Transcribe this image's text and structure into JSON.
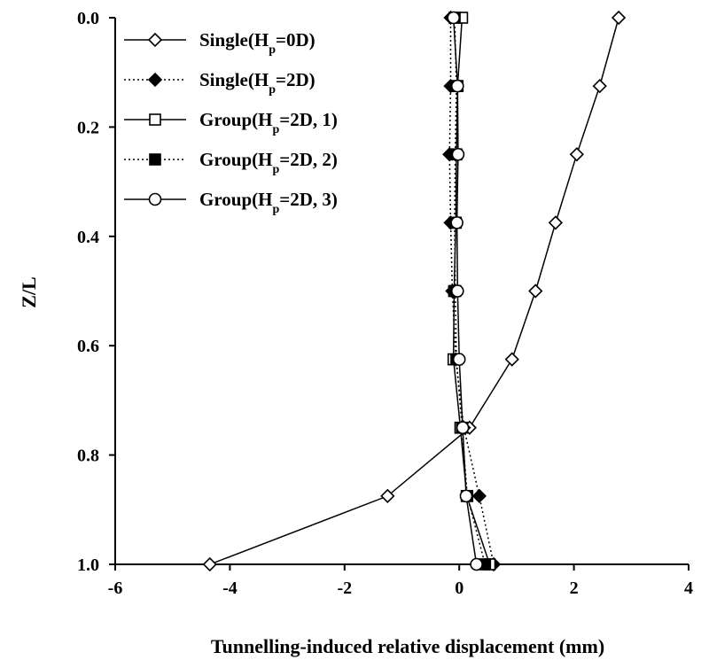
{
  "chart_data": {
    "type": "line",
    "title": "",
    "xlabel": "Tunnelling-induced relative displacement (mm)",
    "ylabel": "Z/L",
    "xlim": [
      -6,
      4
    ],
    "ylim": [
      0,
      1
    ],
    "y_inverted": true,
    "x_ticks": [
      "-6",
      "-4",
      "-2",
      "0",
      "2",
      "4"
    ],
    "y_ticks": [
      "0.0",
      "0.2",
      "0.4",
      "0.6",
      "0.8",
      "1.0"
    ],
    "grid": false,
    "legend_position": "top-left",
    "series": [
      {
        "name_main": "Single(H",
        "name_sub": "p",
        "name_tail": "=0D)",
        "marker": "diamond",
        "fill": "open",
        "line": "solid",
        "points": [
          [
            2.78,
            0.0
          ],
          [
            2.45,
            0.125
          ],
          [
            2.05,
            0.25
          ],
          [
            1.68,
            0.375
          ],
          [
            1.33,
            0.5
          ],
          [
            0.92,
            0.625
          ],
          [
            0.18,
            0.75
          ],
          [
            -1.25,
            0.875
          ],
          [
            -4.35,
            1.0
          ]
        ]
      },
      {
        "name_main": "Single(H",
        "name_sub": "p",
        "name_tail": "=2D)",
        "marker": "diamond",
        "fill": "filled",
        "line": "dotted",
        "points": [
          [
            -0.15,
            0.0
          ],
          [
            -0.15,
            0.125
          ],
          [
            -0.17,
            0.25
          ],
          [
            -0.15,
            0.375
          ],
          [
            -0.12,
            0.5
          ],
          [
            -0.06,
            0.625
          ],
          [
            0.08,
            0.75
          ],
          [
            0.35,
            0.875
          ],
          [
            0.6,
            1.0
          ]
        ]
      },
      {
        "name_main": "Group(H",
        "name_sub": "p",
        "name_tail": "=2D, 1)",
        "marker": "square",
        "fill": "open",
        "line": "solid",
        "points": [
          [
            0.05,
            0.0
          ],
          [
            -0.03,
            0.125
          ],
          [
            -0.05,
            0.25
          ],
          [
            -0.06,
            0.375
          ],
          [
            -0.09,
            0.5
          ],
          [
            -0.1,
            0.625
          ],
          [
            0.02,
            0.75
          ],
          [
            0.13,
            0.875
          ],
          [
            0.53,
            1.0
          ]
        ]
      },
      {
        "name_main": "Group(H",
        "name_sub": "p",
        "name_tail": "=2D, 2)",
        "marker": "square",
        "fill": "filled",
        "line": "dotted",
        "points": [
          [
            -0.08,
            0.0
          ],
          [
            -0.05,
            0.125
          ],
          [
            -0.07,
            0.25
          ],
          [
            -0.08,
            0.375
          ],
          [
            -0.07,
            0.5
          ],
          [
            -0.05,
            0.625
          ],
          [
            0.05,
            0.75
          ],
          [
            0.14,
            0.875
          ],
          [
            0.45,
            1.0
          ]
        ]
      },
      {
        "name_main": "Group(H",
        "name_sub": "p",
        "name_tail": "=2D, 3)",
        "marker": "circle",
        "fill": "open",
        "line": "solid",
        "points": [
          [
            -0.1,
            0.0
          ],
          [
            -0.03,
            0.125
          ],
          [
            -0.02,
            0.25
          ],
          [
            -0.04,
            0.375
          ],
          [
            -0.03,
            0.5
          ],
          [
            0.0,
            0.625
          ],
          [
            0.06,
            0.75
          ],
          [
            0.12,
            0.875
          ],
          [
            0.3,
            1.0
          ]
        ]
      }
    ]
  }
}
